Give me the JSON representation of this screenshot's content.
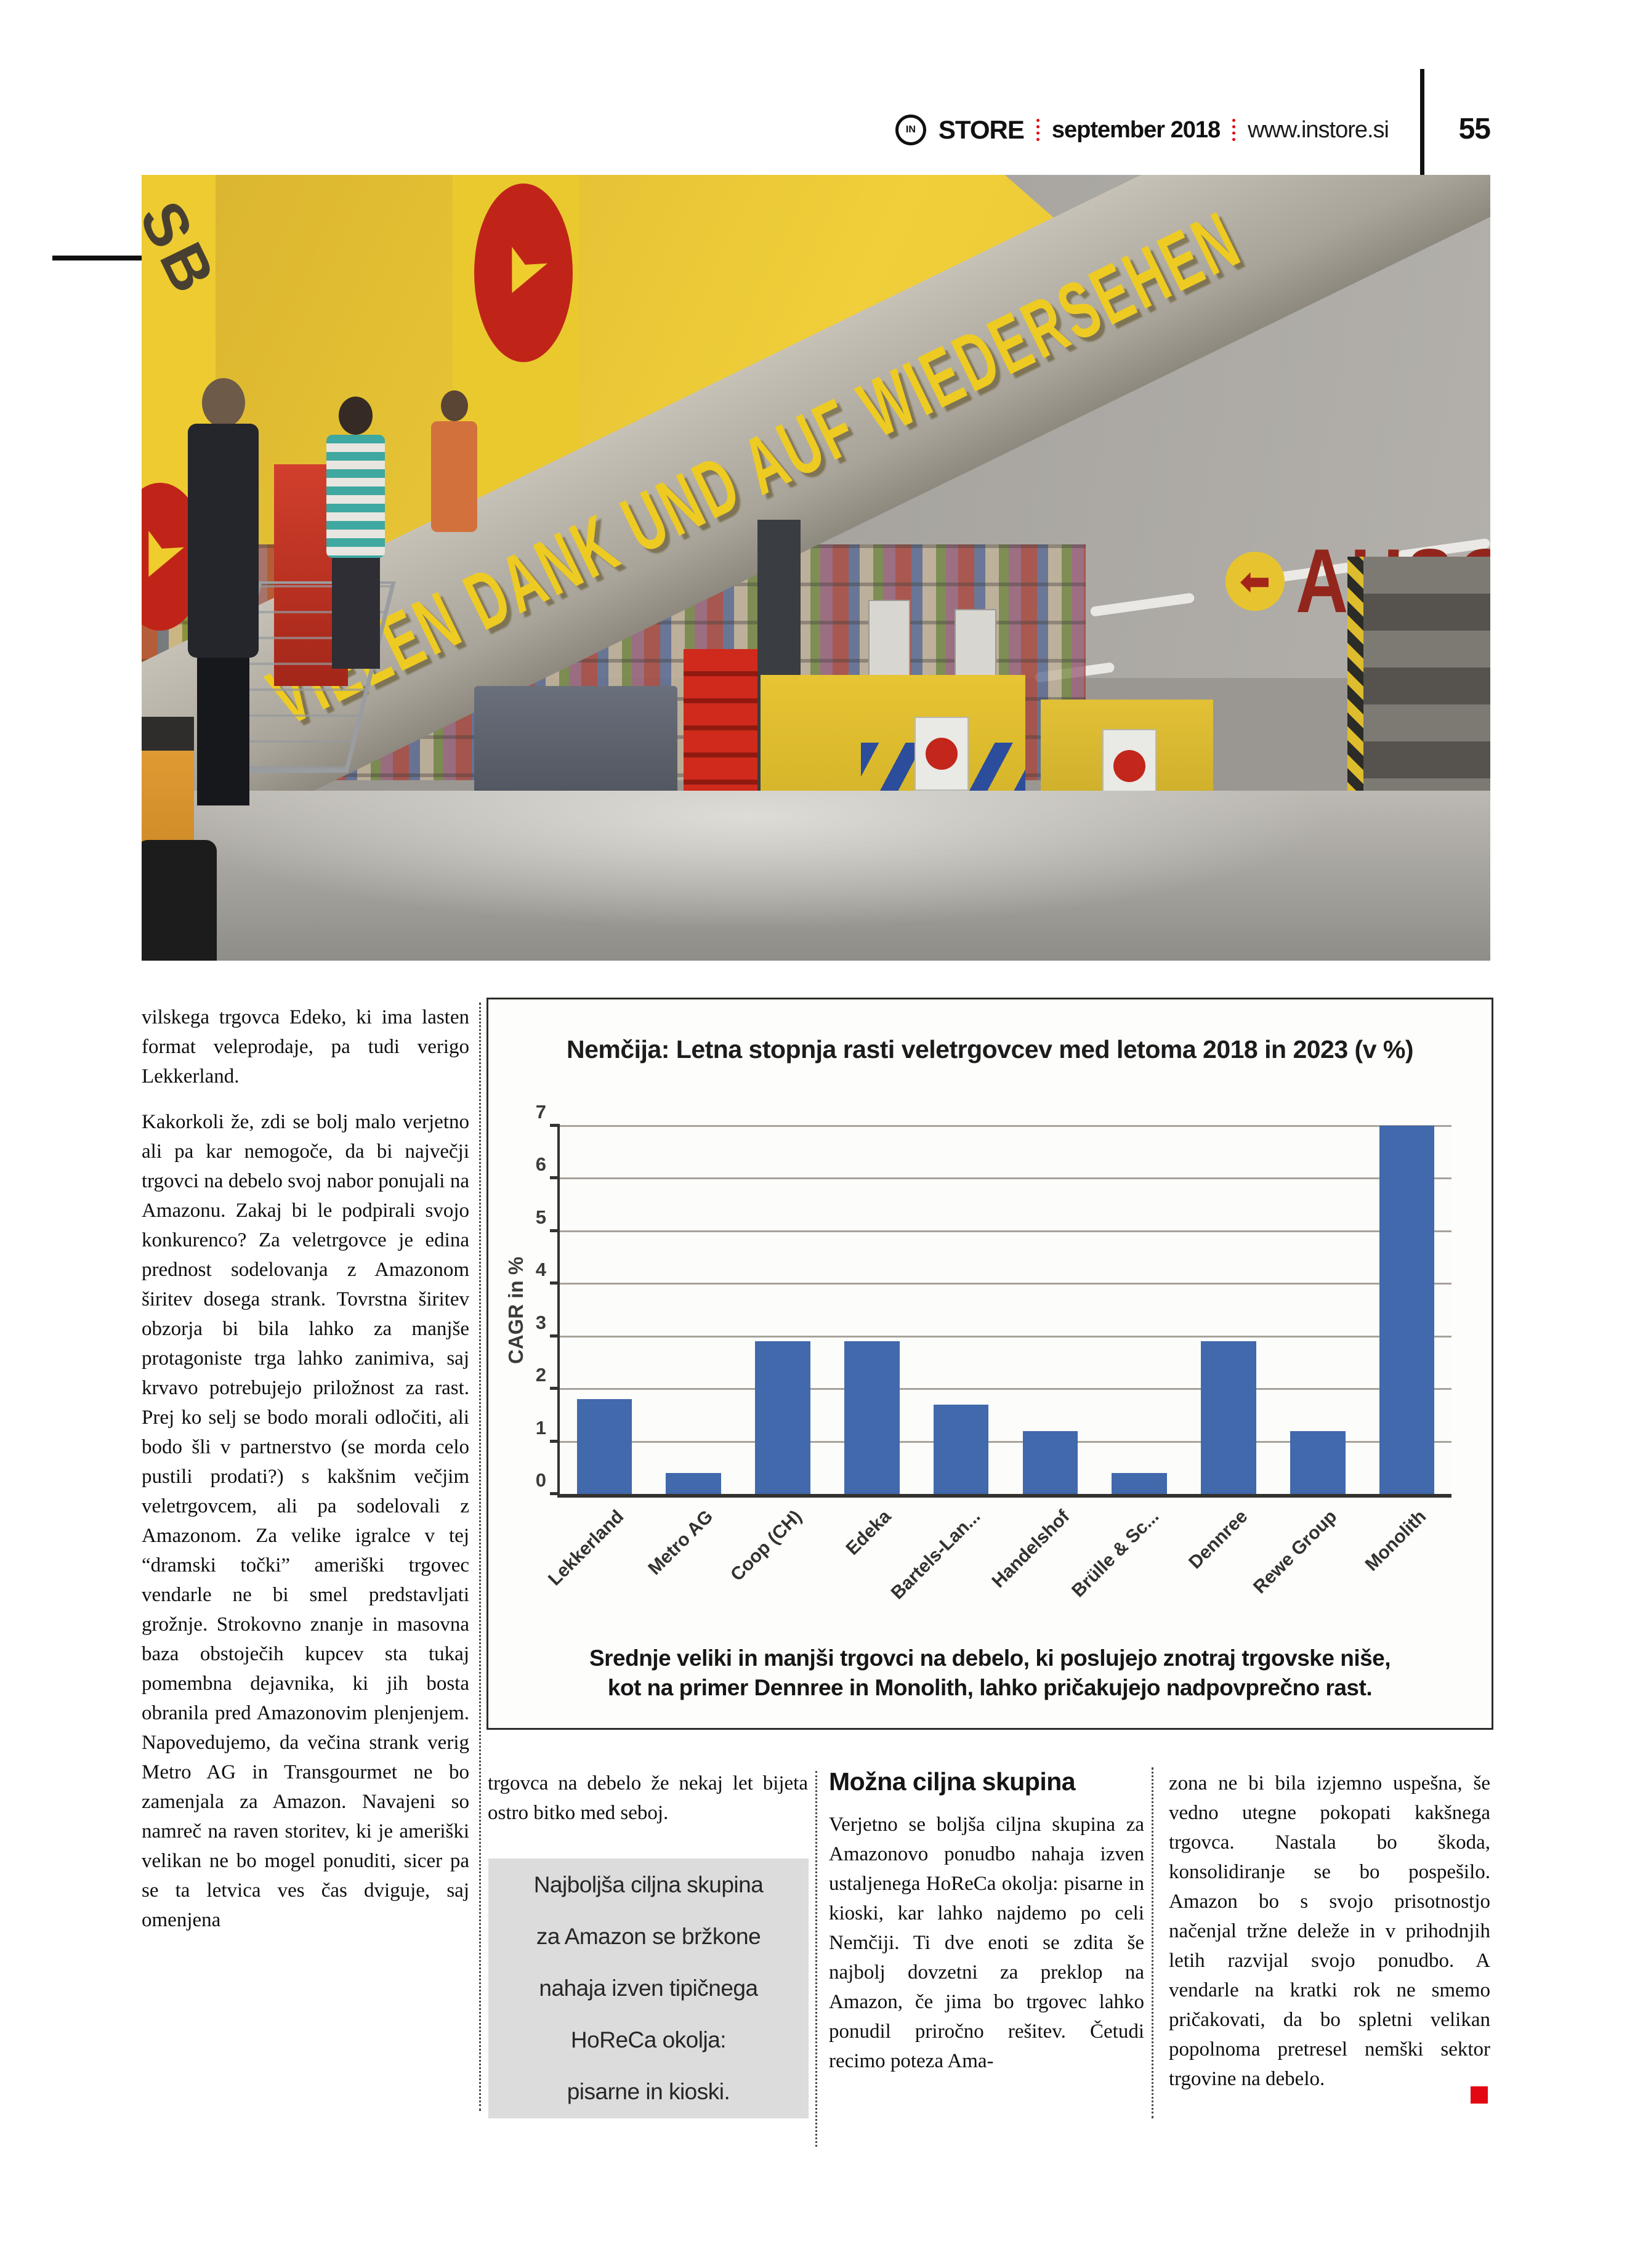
{
  "header": {
    "logo_letters": "IN",
    "brand": "STORE",
    "issue": "september 2018",
    "site": "www.instore.si",
    "page_number": "55"
  },
  "photo": {
    "banner_text": "VIELEN DANK UND AUF WIEDERSEHEN",
    "side_banner_text": "SB K",
    "exit_sign_text": "AUSG",
    "arrow_glyph": "➤",
    "exit_arrow_glyph": "⬅"
  },
  "chart_data": {
    "type": "bar",
    "title": "Nemčija: Letna stopnja rasti veletrgovcev med letoma 2018 in 2023 (v %)",
    "categories": [
      "Lekkerland",
      "Metro AG",
      "Coop (CH)",
      "Edeka",
      "Bartels-Lan...",
      "Handelshof",
      "Brülle & Sc...",
      "Dennree",
      "Rewe Group",
      "Monolith"
    ],
    "values": [
      1.8,
      0.4,
      2.9,
      2.9,
      1.7,
      1.2,
      0.4,
      2.9,
      1.2,
      7.0
    ],
    "xlabel": "",
    "ylabel": "CAGR in %",
    "ylim": [
      0,
      7
    ],
    "yticks": [
      0,
      1,
      2,
      3,
      4,
      5,
      6,
      7
    ],
    "grid": true,
    "legend": false,
    "bar_color": "#4169ac"
  },
  "chart_caption": {
    "lines": [
      "Srednje veliki in manjši trgovci na debelo, ki poslujejo znotraj trgovske niše,",
      "kot na primer Dennree in Monolith, lahko pričakujejo nadpovprečno rast."
    ]
  },
  "columns": {
    "col1": {
      "paragraphs": [
        "vilskega trgovca Edeko, ki ima lasten format veleprodaje, pa tudi verigo Lekkerland.",
        "Kakorkoli že, zdi se bolj malo verjetno ali pa kar nemogoče, da bi največji trgovci na debelo svoj nabor ponujali na Amazonu. Zakaj bi le podpirali svojo konkurenco? Za veletrgovce je edina prednost sodelovanja z Amazonom širitev dosega strank. Tovrstna širitev obzorja bi bila lahko za manjše protagoniste trga lahko zanimiva, saj krvavo potrebujejo priložnost za rast. Prej ko selj se bodo morali odločiti, ali bodo šli v partnerstvo (se morda celo pustili prodati?) s kakšnim večjim veletrgovcem, ali pa sodelovali z Amazonom. Za velike igralce v tej “dramski točki” ameriški trgovec vendarle ne bi smel predstavljati grožnje. Strokovno znanje in masovna baza obstoječih kupcev sta tukaj pomembna dejavnika, ki jih bosta obranila pred Amazonovim plenjenjem. Napovedujemo, da večina strank verig Metro AG in Transgourmet ne bo zamenjala za Amazon. Navajeni so namreč na raven storitev, ki je ameriški velikan ne bo mogel ponuditi, sicer pa se ta letvica ves čas dviguje, saj omenjena"
      ]
    },
    "col2": {
      "paragraph": "trgovca na debelo že nekaj let bijeta ostro bitko med seboj.",
      "pull_quote_lines": [
        "Najboljša ciljna skupina",
        "za Amazon se bržkone",
        "nahaja izven tipičnega",
        "HoReCa okolja:",
        "pisarne in kioski."
      ]
    },
    "col3": {
      "heading": "Možna ciljna skupina",
      "paragraph": "Verjetno se boljša ciljna skupina za Amazonovo ponudbo nahaja izven ustaljenega HoReCa okolja: pisarne in kioski, kar lahko najdemo po celi Nemčiji. Ti dve enoti se zdita še najbolj dovzetni za preklop na Amazon, če jima bo trgovec lahko ponudil priročno rešitev. Četudi recimo poteza Ama-"
    },
    "col4": {
      "paragraph": "zona ne bi bila izjemno uspešna, še vedno utegne pokopati kakšnega trgovca. Nastala bo škoda, konsolidiranje se bo pospešilo. Amazon bo s svojo prisotnostjo načenjal tržne deleže in v prihodnjih letih razvijal svojo ponudbo. A vendarle na kratki rok ne smemo pričakovati, da bo spletni velikan popolnoma pretresel nemški sektor trgovine na debelo.",
      "end_mark": "■"
    }
  },
  "colors": {
    "accent_red": "#e30613",
    "bar_blue": "#4169ac",
    "pullquote_bg": "#dcdcdc",
    "banner_yellow": "#f0cf3a"
  }
}
